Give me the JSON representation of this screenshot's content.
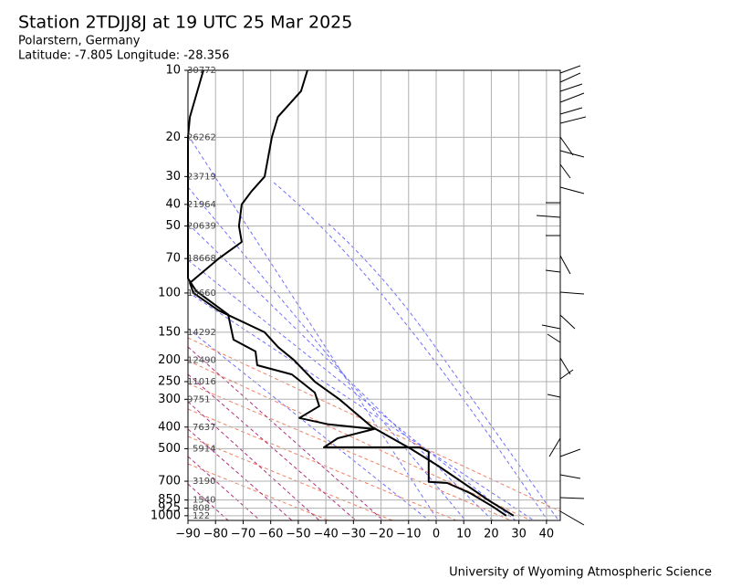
{
  "chart_data": {
    "type": "line",
    "title": "Station 2TDJJ8J at 19 UTC 25 Mar 2025",
    "subtitle": "Polarstern, Germany",
    "location": "Latitude: -7.805 Longitude: -28.356",
    "credit": "University of Wyoming Atmospheric Science",
    "log_y": true,
    "grid": true,
    "xlim": [
      -90,
      45
    ],
    "ylim": [
      1050,
      10
    ],
    "xticks": [
      {
        "value": -90,
        "label": "−90"
      },
      {
        "value": -80,
        "label": "−80"
      },
      {
        "value": -70,
        "label": "−70"
      },
      {
        "value": -60,
        "label": "−60"
      },
      {
        "value": -50,
        "label": "−50"
      },
      {
        "value": -40,
        "label": "−40"
      },
      {
        "value": -30,
        "label": "−30"
      },
      {
        "value": -20,
        "label": "−20"
      },
      {
        "value": -10,
        "label": "−10"
      },
      0,
      10,
      20,
      30,
      40
    ],
    "yticks": [
      10,
      20,
      30,
      40,
      50,
      70,
      100,
      150,
      200,
      250,
      300,
      400,
      500,
      700,
      850,
      925,
      1000
    ],
    "height_labels": {
      "pressures": [
        10,
        20,
        30,
        40,
        50,
        70,
        100,
        150,
        200,
        250,
        300,
        400,
        500,
        700,
        850,
        925,
        1000
      ],
      "labels": [
        30772,
        26262,
        23719,
        21964,
        20639,
        18668,
        16660,
        14292,
        12490,
        11016,
        9751,
        7637,
        5914,
        3190,
        1540,
        808,
        122
      ]
    },
    "series": [
      {
        "color": "#000000",
        "x": [
          -46.7,
          -49,
          -57.4,
          -59.6,
          -62.2,
          -67,
          -70.5,
          -71.5,
          -70.5,
          -78.8,
          -85.4,
          -89.3,
          -88,
          -78.8,
          -62.2,
          -57.3,
          -51.6,
          -44,
          -35.1,
          -23.2,
          -9.3,
          0.6,
          8.9,
          18.8,
          28.1
        ],
        "y": [
          10,
          12.4,
          16.2,
          20,
          30,
          35,
          40,
          50,
          59,
          70,
          82,
          90,
          100,
          120,
          150,
          175,
          200,
          250,
          300,
          400,
          500,
          596,
          700,
          850,
          1000
        ]
      },
      {
        "color": "#000000",
        "x": [
          -84.4,
          -89.3,
          -90,
          -90,
          -90,
          -87,
          -75.4,
          -73.5,
          -65.5,
          -64.9,
          -52.3,
          -44,
          -42.4,
          -49.6,
          -39,
          -22.5,
          -35.7,
          -40.7,
          -6,
          -2.7,
          -2.7,
          4,
          12.2,
          20.5,
          25.4
        ],
        "y": [
          10,
          16.2,
          20,
          30,
          86,
          98,
          125,
          162,
          183,
          211,
          232,
          280,
          322,
          364,
          389,
          408,
          449,
          493,
          493,
          517,
          705,
          713,
          790,
          910,
          1000
        ]
      }
    ]
  }
}
